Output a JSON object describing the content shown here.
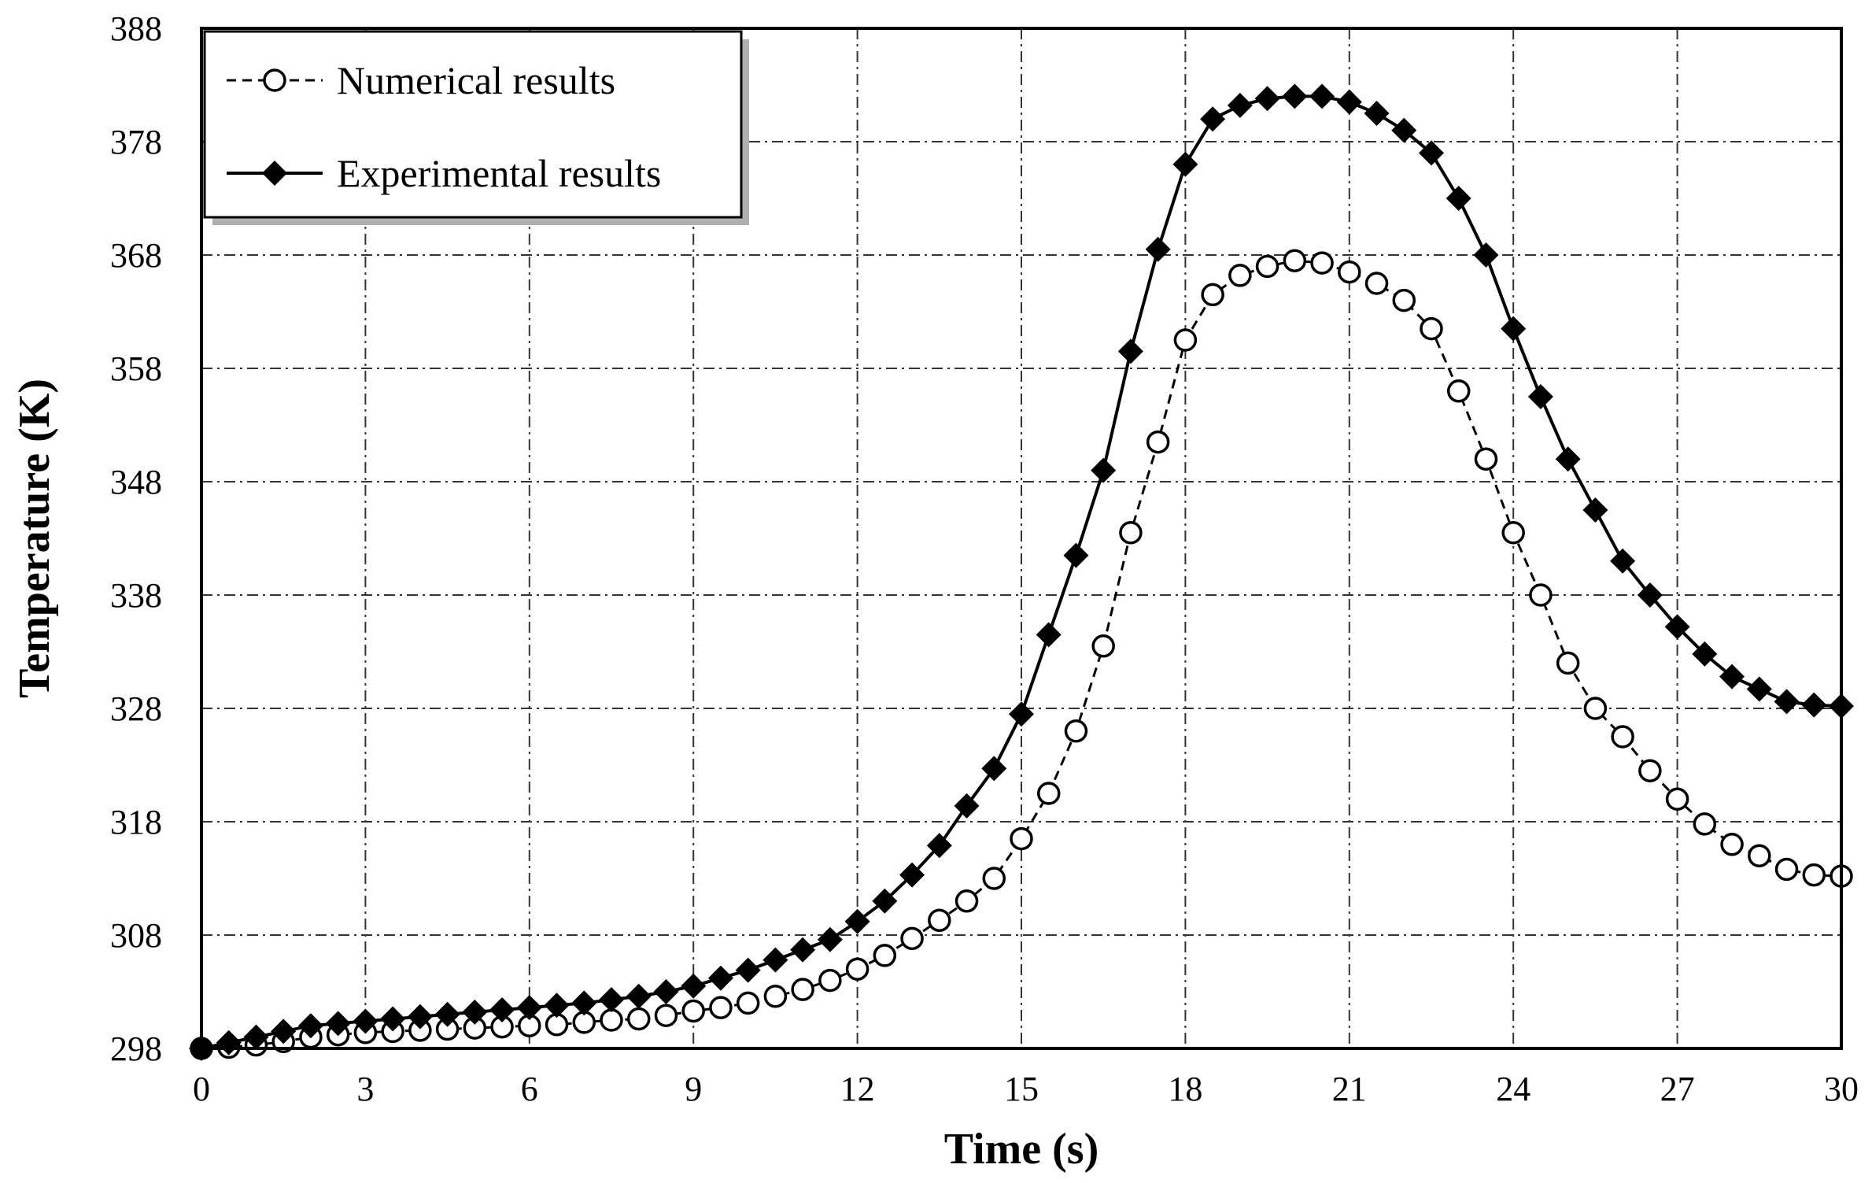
{
  "chart_data": {
    "type": "line",
    "title": "",
    "xlabel": "Time (s)",
    "ylabel": "Temperature (K)",
    "xlim": [
      0,
      30
    ],
    "ylim": [
      298,
      388
    ],
    "xticks": [
      0,
      3,
      6,
      9,
      12,
      15,
      18,
      21,
      24,
      27,
      30
    ],
    "yticks": [
      298,
      308,
      318,
      328,
      338,
      348,
      358,
      368,
      378,
      388
    ],
    "grid": true,
    "legend_position": "top-left",
    "colors": {
      "line": "#000000",
      "grid": "#333333",
      "background": "#ffffff"
    },
    "series": [
      {
        "name": "Numerical results",
        "style": "dashed",
        "marker": "open-circle",
        "x": [
          0,
          0.5,
          1,
          1.5,
          2,
          2.5,
          3,
          3.5,
          4,
          4.5,
          5,
          5.5,
          6,
          6.5,
          7,
          7.5,
          8,
          8.5,
          9,
          9.5,
          10,
          10.5,
          11,
          11.5,
          12,
          12.5,
          13,
          13.5,
          14,
          14.5,
          15,
          15.5,
          16,
          16.5,
          17,
          17.5,
          18,
          18.5,
          19,
          19.5,
          20,
          20.5,
          21,
          21.5,
          22,
          22.5,
          23,
          23.5,
          24,
          24.5,
          25,
          25.5,
          26,
          26.5,
          27,
          27.5,
          28,
          28.5,
          29,
          29.5,
          30
        ],
        "y": [
          298,
          298.1,
          298.3,
          298.6,
          299.0,
          299.2,
          299.4,
          299.5,
          299.6,
          299.7,
          299.8,
          299.9,
          300.0,
          300.1,
          300.3,
          300.5,
          300.6,
          300.9,
          301.3,
          301.6,
          302.0,
          302.6,
          303.2,
          304.0,
          305.0,
          306.2,
          307.7,
          309.3,
          311.0,
          313.0,
          316.5,
          320.5,
          326.0,
          333.5,
          343.5,
          351.5,
          360.5,
          364.5,
          366.2,
          367.0,
          367.5,
          367.3,
          366.5,
          365.5,
          364.0,
          361.5,
          356.0,
          350.0,
          343.5,
          338.0,
          332.0,
          328.0,
          325.5,
          322.5,
          320.0,
          317.8,
          316.0,
          315.0,
          313.8,
          313.3,
          313.2
        ]
      },
      {
        "name": "Experimental results",
        "style": "solid",
        "marker": "filled-diamond",
        "x": [
          0,
          0.5,
          1,
          1.5,
          2,
          2.5,
          3,
          3.5,
          4,
          4.5,
          5,
          5.5,
          6,
          6.5,
          7,
          7.5,
          8,
          8.5,
          9,
          9.5,
          10,
          10.5,
          11,
          11.5,
          12,
          12.5,
          13,
          13.5,
          14,
          14.5,
          15,
          15.5,
          16,
          16.5,
          17,
          17.5,
          18,
          18.5,
          19,
          19.5,
          20,
          20.5,
          21,
          21.5,
          22,
          22.5,
          23,
          23.5,
          24,
          24.5,
          25,
          25.5,
          26,
          26.5,
          27,
          27.5,
          28,
          28.5,
          29,
          29.5,
          30
        ],
        "y": [
          298,
          298.5,
          299.0,
          299.5,
          300.0,
          300.2,
          300.4,
          300.6,
          300.8,
          301.0,
          301.2,
          301.4,
          301.6,
          301.8,
          302.0,
          302.3,
          302.6,
          303.0,
          303.5,
          304.2,
          304.9,
          305.8,
          306.7,
          307.6,
          309.2,
          311.0,
          313.3,
          315.9,
          319.4,
          322.7,
          327.5,
          334.5,
          341.5,
          349.0,
          359.5,
          368.5,
          376.0,
          380.0,
          381.2,
          381.8,
          382.0,
          382.0,
          381.5,
          380.5,
          379.0,
          377.0,
          373.0,
          368.0,
          361.5,
          355.5,
          350.0,
          345.5,
          341.0,
          338.0,
          335.2,
          332.8,
          330.8,
          329.7,
          328.6,
          328.3,
          328.2
        ]
      }
    ]
  }
}
